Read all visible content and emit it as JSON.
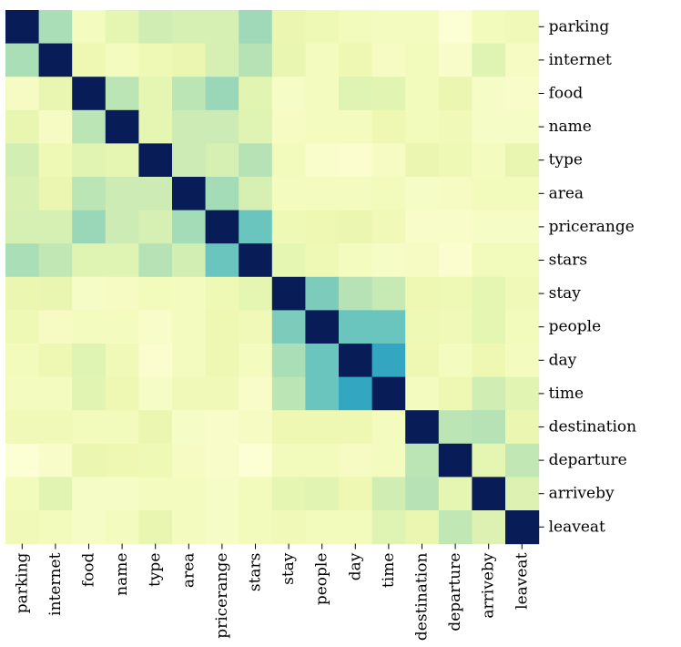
{
  "chart_data": {
    "type": "heatmap",
    "title": "",
    "xlabel": "",
    "ylabel": "",
    "colormap": "YlGnBu",
    "value_range": [
      0,
      1
    ],
    "row_labels": [
      "parking",
      "internet",
      "food",
      "name",
      "type",
      "area",
      "pricerange",
      "stars",
      "stay",
      "people",
      "day",
      "time",
      "destination",
      "departure",
      "arriveby",
      "leaveat"
    ],
    "col_labels": [
      "parking",
      "internet",
      "food",
      "name",
      "type",
      "area",
      "pricerange",
      "stars",
      "stay",
      "people",
      "day",
      "time",
      "destination",
      "departure",
      "arriveby",
      "leaveat"
    ],
    "matrix": [
      [
        1.0,
        0.3,
        0.08,
        0.15,
        0.22,
        0.2,
        0.2,
        0.32,
        0.13,
        0.11,
        0.09,
        0.08,
        0.08,
        0.02,
        0.09,
        0.1
      ],
      [
        0.3,
        1.0,
        0.12,
        0.08,
        0.11,
        0.13,
        0.2,
        0.28,
        0.14,
        0.08,
        0.12,
        0.07,
        0.09,
        0.05,
        0.17,
        0.07
      ],
      [
        0.07,
        0.14,
        1.0,
        0.27,
        0.15,
        0.27,
        0.33,
        0.16,
        0.06,
        0.08,
        0.17,
        0.16,
        0.09,
        0.13,
        0.06,
        0.05
      ],
      [
        0.14,
        0.07,
        0.27,
        1.0,
        0.15,
        0.23,
        0.23,
        0.17,
        0.07,
        0.08,
        0.08,
        0.12,
        0.09,
        0.1,
        0.06,
        0.06
      ],
      [
        0.21,
        0.11,
        0.16,
        0.15,
        1.0,
        0.23,
        0.2,
        0.28,
        0.09,
        0.04,
        0.03,
        0.07,
        0.13,
        0.11,
        0.08,
        0.14
      ],
      [
        0.19,
        0.13,
        0.27,
        0.23,
        0.23,
        1.0,
        0.31,
        0.2,
        0.08,
        0.08,
        0.08,
        0.09,
        0.06,
        0.07,
        0.09,
        0.09
      ],
      [
        0.2,
        0.2,
        0.33,
        0.23,
        0.2,
        0.31,
        1.0,
        0.42,
        0.11,
        0.12,
        0.13,
        0.1,
        0.05,
        0.05,
        0.06,
        0.06
      ],
      [
        0.3,
        0.26,
        0.17,
        0.17,
        0.28,
        0.21,
        0.42,
        1.0,
        0.15,
        0.11,
        0.08,
        0.06,
        0.07,
        0.03,
        0.09,
        0.09
      ],
      [
        0.13,
        0.14,
        0.06,
        0.07,
        0.09,
        0.08,
        0.11,
        0.15,
        1.0,
        0.38,
        0.28,
        0.25,
        0.12,
        0.11,
        0.15,
        0.1
      ],
      [
        0.11,
        0.07,
        0.08,
        0.08,
        0.05,
        0.08,
        0.12,
        0.1,
        0.38,
        1.0,
        0.42,
        0.42,
        0.11,
        0.1,
        0.15,
        0.09
      ],
      [
        0.09,
        0.12,
        0.17,
        0.1,
        0.03,
        0.08,
        0.12,
        0.08,
        0.3,
        0.42,
        1.0,
        0.55,
        0.12,
        0.08,
        0.12,
        0.08
      ],
      [
        0.08,
        0.08,
        0.16,
        0.12,
        0.06,
        0.1,
        0.1,
        0.05,
        0.27,
        0.42,
        0.55,
        1.0,
        0.08,
        0.12,
        0.22,
        0.16
      ],
      [
        0.1,
        0.1,
        0.09,
        0.09,
        0.13,
        0.06,
        0.05,
        0.07,
        0.12,
        0.12,
        0.12,
        0.08,
        1.0,
        0.27,
        0.28,
        0.13
      ],
      [
        0.02,
        0.05,
        0.13,
        0.12,
        0.11,
        0.07,
        0.05,
        0.02,
        0.09,
        0.09,
        0.07,
        0.08,
        0.27,
        1.0,
        0.15,
        0.26
      ],
      [
        0.09,
        0.16,
        0.06,
        0.06,
        0.08,
        0.08,
        0.06,
        0.09,
        0.15,
        0.16,
        0.12,
        0.22,
        0.28,
        0.15,
        1.0,
        0.18
      ],
      [
        0.1,
        0.09,
        0.06,
        0.08,
        0.14,
        0.08,
        0.06,
        0.09,
        0.1,
        0.09,
        0.09,
        0.17,
        0.13,
        0.26,
        0.18,
        1.0
      ]
    ]
  }
}
